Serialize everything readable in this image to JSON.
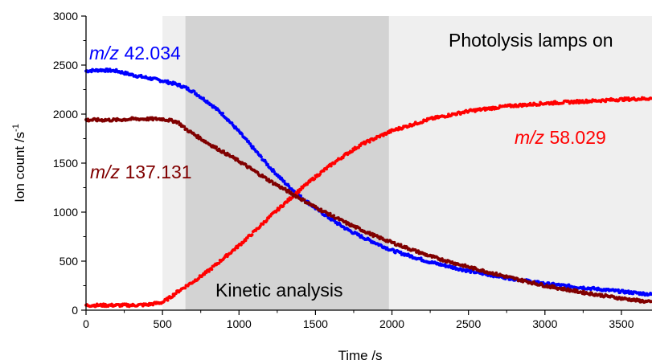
{
  "chart_data": {
    "type": "scatter",
    "title": "",
    "xlabel": "Time /s",
    "ylabel": "Ion count /s",
    "ylabel_superscript": "-1",
    "xlim": [
      0,
      3700
    ],
    "ylim": [
      0,
      3000
    ],
    "xticks": [
      "0",
      "500",
      "1000",
      "1500",
      "2000",
      "2500",
      "3000",
      "3500"
    ],
    "yticks": [
      "0",
      "500",
      "1000",
      "1500",
      "2000",
      "2500",
      "3000"
    ],
    "grid": false,
    "legend": "none",
    "shaded_regions": [
      {
        "x_start": 500,
        "x_end": 3700,
        "color": "#efefef"
      },
      {
        "x_start": 650,
        "x_end": 1980,
        "color": "#d3d3d3"
      }
    ],
    "annotations": {
      "lamps": "Photolysis lamps on",
      "kinetic": "Kinetic analysis",
      "s1_ital": "m/z",
      "s1_num": " 42.034",
      "s2_ital": "m/z",
      "s2_num": " 137.131",
      "s3_ital": "m/z",
      "s3_num": " 58.029"
    },
    "series": [
      {
        "name": "m/z 42.034",
        "color": "#0000ff",
        "x": [
          0,
          100,
          200,
          300,
          400,
          500,
          600,
          650,
          700,
          800,
          900,
          1000,
          1100,
          1200,
          1300,
          1400,
          1500,
          1600,
          1700,
          1800,
          1900,
          2000,
          2250,
          2500,
          2750,
          3000,
          3250,
          3500,
          3700
        ],
        "y": [
          2440,
          2450,
          2440,
          2400,
          2370,
          2340,
          2300,
          2270,
          2230,
          2120,
          1990,
          1820,
          1640,
          1460,
          1300,
          1160,
          1040,
          930,
          830,
          750,
          680,
          610,
          490,
          400,
          330,
          270,
          230,
          190,
          160
        ]
      },
      {
        "name": "m/z 137.131",
        "color": "#800000",
        "x": [
          0,
          100,
          200,
          300,
          400,
          500,
          600,
          650,
          700,
          800,
          900,
          1000,
          1100,
          1200,
          1300,
          1400,
          1500,
          1600,
          1700,
          1800,
          1900,
          2000,
          2250,
          2500,
          2750,
          3000,
          3250,
          3500,
          3700
        ],
        "y": [
          1940,
          1940,
          1940,
          1950,
          1950,
          1950,
          1920,
          1850,
          1800,
          1700,
          1610,
          1520,
          1420,
          1320,
          1230,
          1140,
          1050,
          970,
          890,
          820,
          750,
          690,
          550,
          440,
          340,
          250,
          180,
          120,
          80
        ]
      },
      {
        "name": "m/z 58.029",
        "color": "#ff0000",
        "x": [
          0,
          100,
          200,
          300,
          400,
          500,
          550,
          600,
          650,
          700,
          800,
          900,
          1000,
          1100,
          1200,
          1300,
          1400,
          1500,
          1600,
          1700,
          1800,
          1900,
          2000,
          2250,
          2500,
          2750,
          3000,
          3250,
          3500,
          3700
        ],
        "y": [
          50,
          50,
          50,
          50,
          55,
          80,
          130,
          190,
          240,
          290,
          400,
          530,
          660,
          800,
          950,
          1090,
          1230,
          1360,
          1480,
          1590,
          1690,
          1760,
          1830,
          1950,
          2030,
          2080,
          2110,
          2130,
          2150,
          2160
        ]
      }
    ]
  }
}
